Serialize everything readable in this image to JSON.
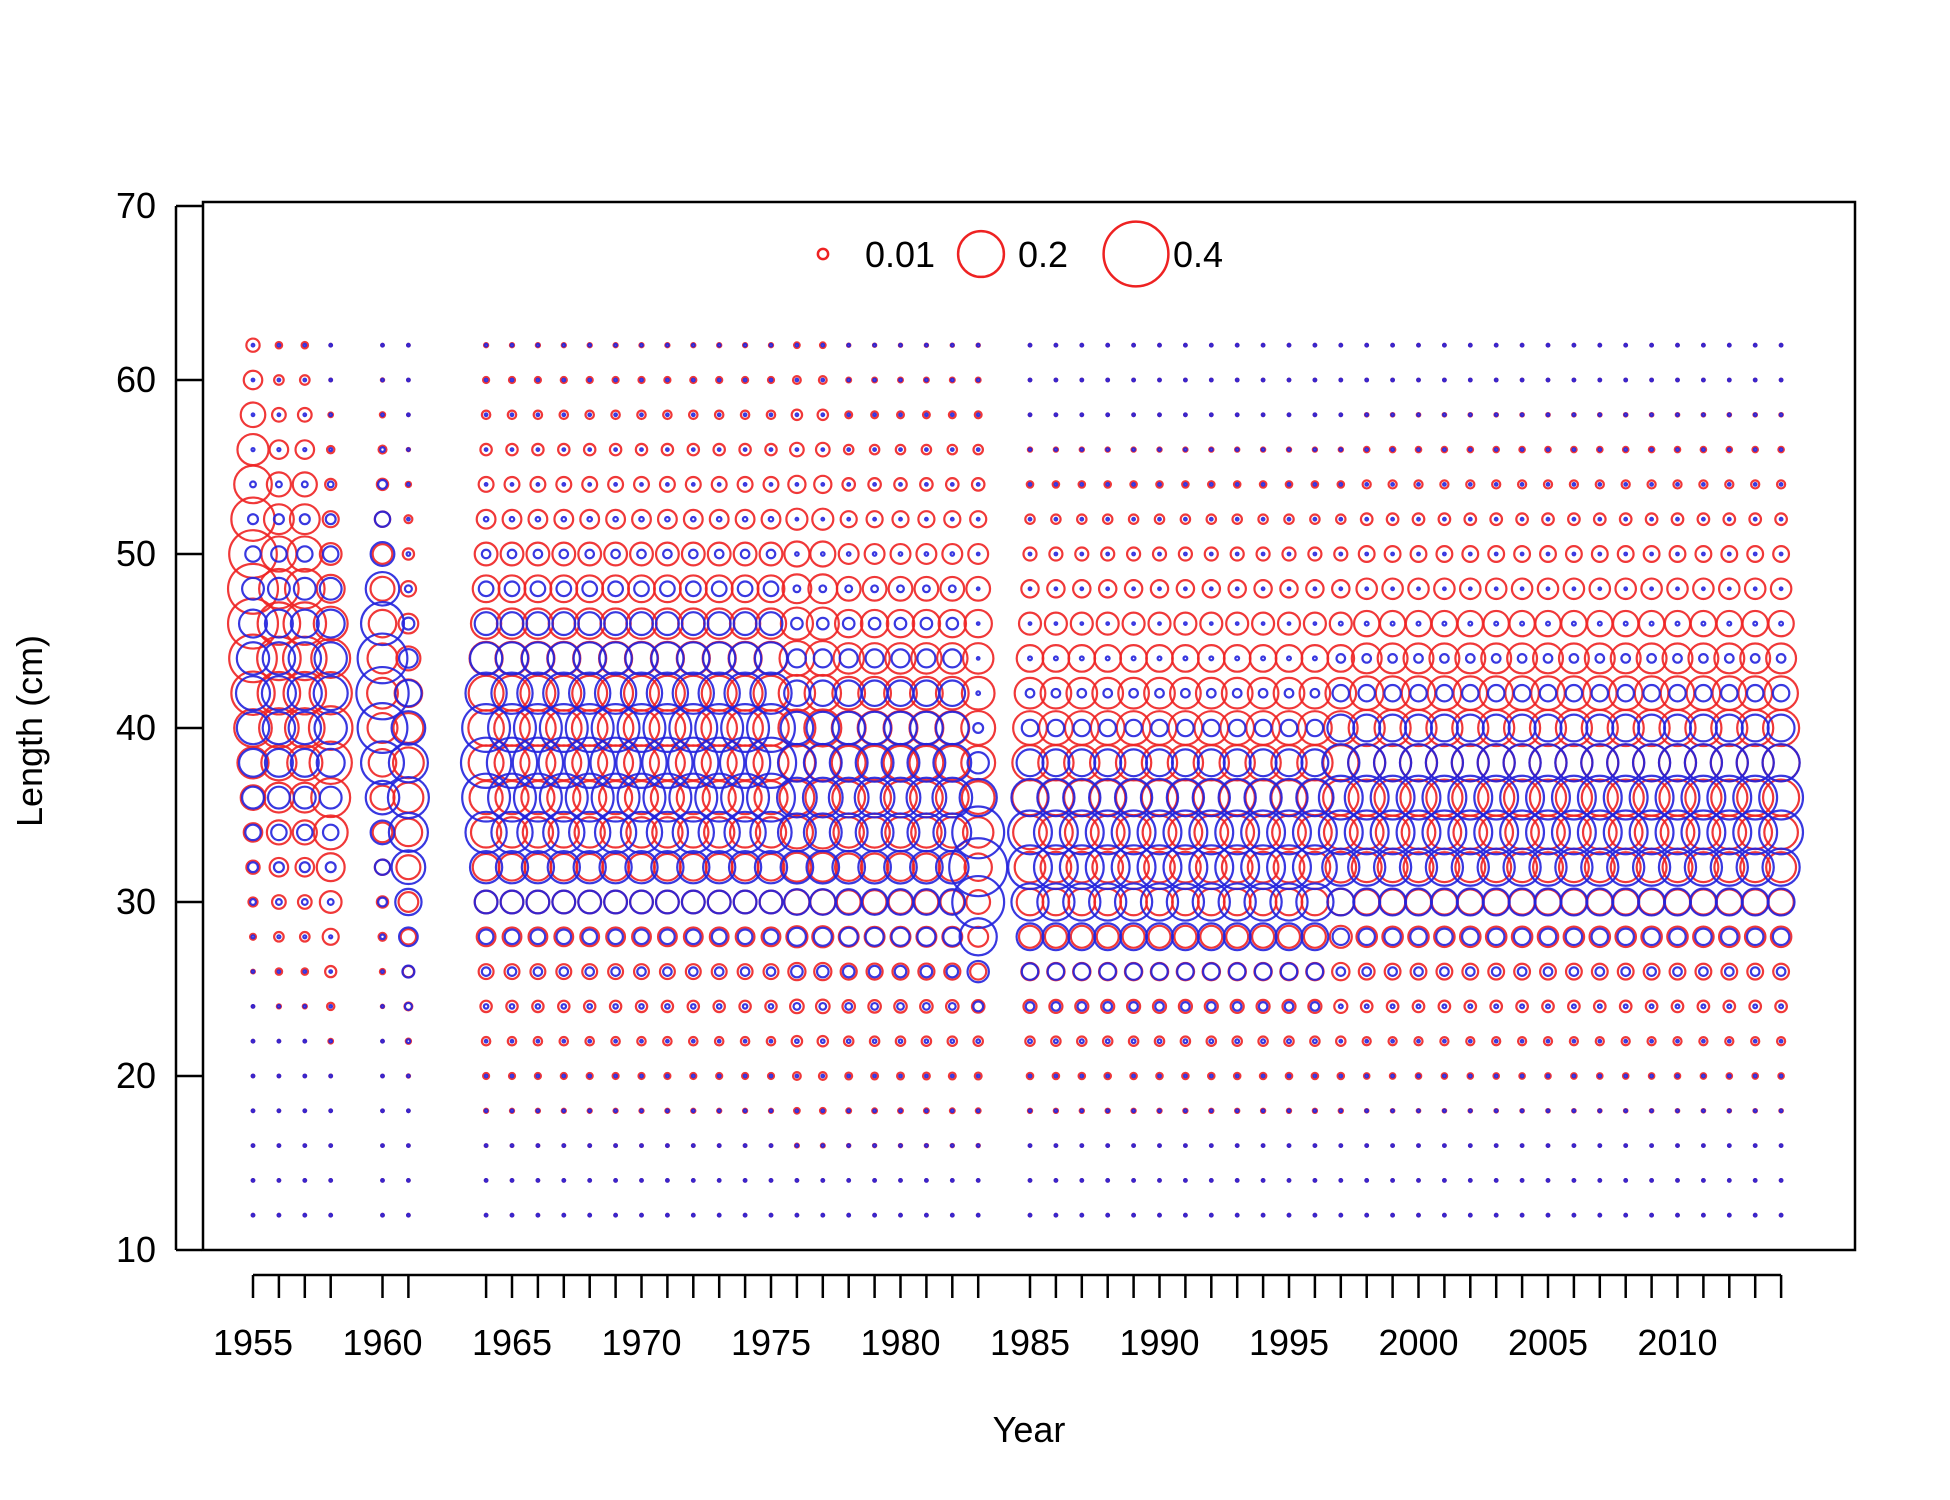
{
  "chart_data": {
    "type": "scatter",
    "subtype": "bubble",
    "title": "",
    "xlabel": "Year",
    "ylabel": "Length (cm)",
    "xlim": [
      1954,
      2016
    ],
    "ylim": [
      10,
      70
    ],
    "x_ticks": [
      1955,
      1960,
      1965,
      1970,
      1975,
      1980,
      1985,
      1990,
      1995,
      2000,
      2005,
      2010
    ],
    "y_ticks": [
      10,
      20,
      30,
      40,
      50,
      60,
      70
    ],
    "grid": false,
    "bubble_legend": {
      "placement": "top",
      "entries": [
        {
          "label": "0.01",
          "value": 0.01
        },
        {
          "label": "0.2",
          "value": 0.2
        },
        {
          "label": "0.4",
          "value": 0.4
        }
      ]
    },
    "colors": {
      "series_a": "#ee2222",
      "series_b": "#2222dd"
    },
    "years": [
      1955,
      1956,
      1957,
      1958,
      1960,
      1961,
      1964,
      1965,
      1966,
      1967,
      1968,
      1969,
      1970,
      1971,
      1972,
      1973,
      1974,
      1975,
      1976,
      1977,
      1978,
      1979,
      1980,
      1981,
      1982,
      1983,
      1985,
      1986,
      1987,
      1988,
      1989,
      1990,
      1991,
      1992,
      1993,
      1994,
      1995,
      1996,
      1997,
      1998,
      1999,
      2000,
      2001,
      2002,
      2003,
      2004,
      2005,
      2006,
      2007,
      2008,
      2009,
      2010,
      2011,
      2012,
      2013,
      2014
    ],
    "lengths": [
      12,
      14,
      16,
      18,
      20,
      22,
      24,
      26,
      28,
      30,
      32,
      34,
      36,
      38,
      40,
      42,
      44,
      46,
      48,
      50,
      52,
      54,
      56,
      58,
      60,
      62
    ],
    "series": [
      {
        "color": "#ee2222",
        "profiles": [
          {
            "years": [
              1955
            ],
            "peak": 47,
            "spread": 6.5,
            "max": 0.24
          },
          {
            "years": [
              1956,
              1957
            ],
            "peak": 44,
            "spread": 6.5,
            "max": 0.18
          },
          {
            "years": [
              1958
            ],
            "peak": 40,
            "spread": 6,
            "max": 0.18
          },
          {
            "years": [
              1960
            ],
            "peak": 42,
            "spread": 6,
            "max": 0.09
          },
          {
            "years": [
              1961
            ],
            "peak": 38,
            "spread": 6,
            "max": 0.09
          },
          {
            "years": [
              1964,
              1965,
              1966,
              1967,
              1968,
              1969,
              1970,
              1971,
              1972,
              1973,
              1974,
              1975
            ],
            "peak": 40,
            "spread": 7.5,
            "max": 0.12
          },
          {
            "years": [
              1976,
              1977
            ],
            "peak": 40,
            "spread": 8,
            "max": 0.13
          },
          {
            "years": [
              1978,
              1979,
              1980,
              1981,
              1982,
              1983
            ],
            "peak": 39,
            "spread": 7.5,
            "max": 0.11
          },
          {
            "years": [
              1985,
              1986,
              1987,
              1988,
              1989,
              1990,
              1991,
              1992,
              1993,
              1994,
              1995,
              1996,
              1997
            ],
            "peak": 37,
            "spread": 6.5,
            "max": 0.12
          },
          {
            "years": [
              1998,
              1999,
              2000,
              2001,
              2002,
              2003,
              2004,
              2005,
              2006,
              2007,
              2008,
              2009,
              2010,
              2011,
              2012,
              2013,
              2014
            ],
            "peak": 38,
            "spread": 6.5,
            "max": 0.13
          }
        ]
      },
      {
        "color": "#2222dd",
        "profiles": [
          {
            "years": [
              1955,
              1956,
              1957,
              1958
            ],
            "peak": 42,
            "spread": 4.5,
            "max": 0.11
          },
          {
            "years": [
              1960
            ],
            "peak": 42,
            "spread": 4.5,
            "max": 0.26
          },
          {
            "years": [
              1961
            ],
            "peak": 36,
            "spread": 4.5,
            "max": 0.16
          },
          {
            "years": [
              1964,
              1965,
              1966,
              1967,
              1968,
              1969,
              1970,
              1971,
              1972,
              1973,
              1974,
              1975
            ],
            "peak": 38,
            "spread": 4.5,
            "max": 0.24
          },
          {
            "years": [
              1976,
              1977,
              1978,
              1979,
              1980,
              1981,
              1982
            ],
            "peak": 36,
            "spread": 4.5,
            "max": 0.15
          },
          {
            "years": [
              1983
            ],
            "peak": 32,
            "spread": 3,
            "max": 0.32
          },
          {
            "years": [
              1985,
              1986,
              1987,
              1988,
              1989,
              1990,
              1991,
              1992,
              1993,
              1994,
              1995,
              1996
            ],
            "peak": 33,
            "spread": 3.5,
            "max": 0.19
          },
          {
            "years": [
              1997,
              1998,
              1999,
              2000,
              2001,
              2002,
              2003,
              2004,
              2005,
              2006,
              2007,
              2008,
              2009,
              2010,
              2011,
              2012,
              2013,
              2014
            ],
            "peak": 35,
            "spread": 3.5,
            "max": 0.19
          }
        ]
      }
    ]
  }
}
